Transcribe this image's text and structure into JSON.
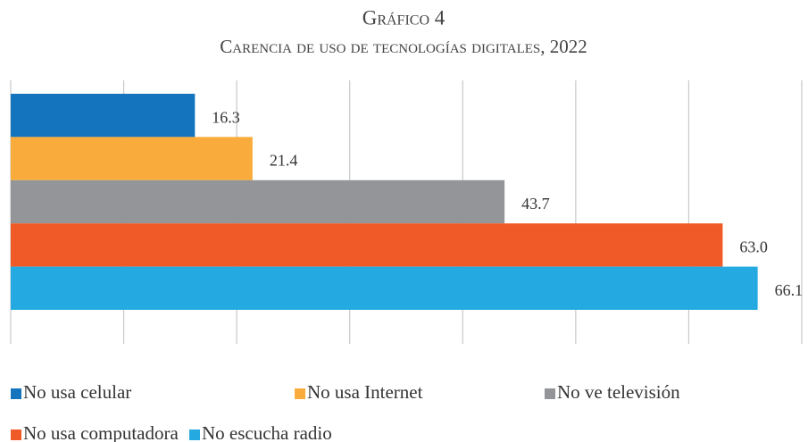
{
  "chart_data": {
    "type": "bar",
    "orientation": "horizontal",
    "title": "Gráfico 4",
    "subtitle": "Carencia de uso de tecnologías digitales, 2022",
    "categories": [
      "No usa celular",
      "No usa Internet",
      "No ve televisión",
      "No usa computadora",
      "No escucha radio"
    ],
    "values": [
      16.3,
      21.4,
      43.7,
      63.0,
      66.1
    ],
    "value_labels": [
      "16.3",
      "21.4",
      "43.7",
      "63.0",
      "66.1"
    ],
    "colors": [
      "#1474be",
      "#f9ac3b",
      "#939598",
      "#ef5a28",
      "#24a9e1"
    ],
    "xlim": [
      0,
      70
    ],
    "xticks": [
      0,
      10,
      20,
      30,
      40,
      50,
      60,
      70
    ],
    "grid": true
  }
}
